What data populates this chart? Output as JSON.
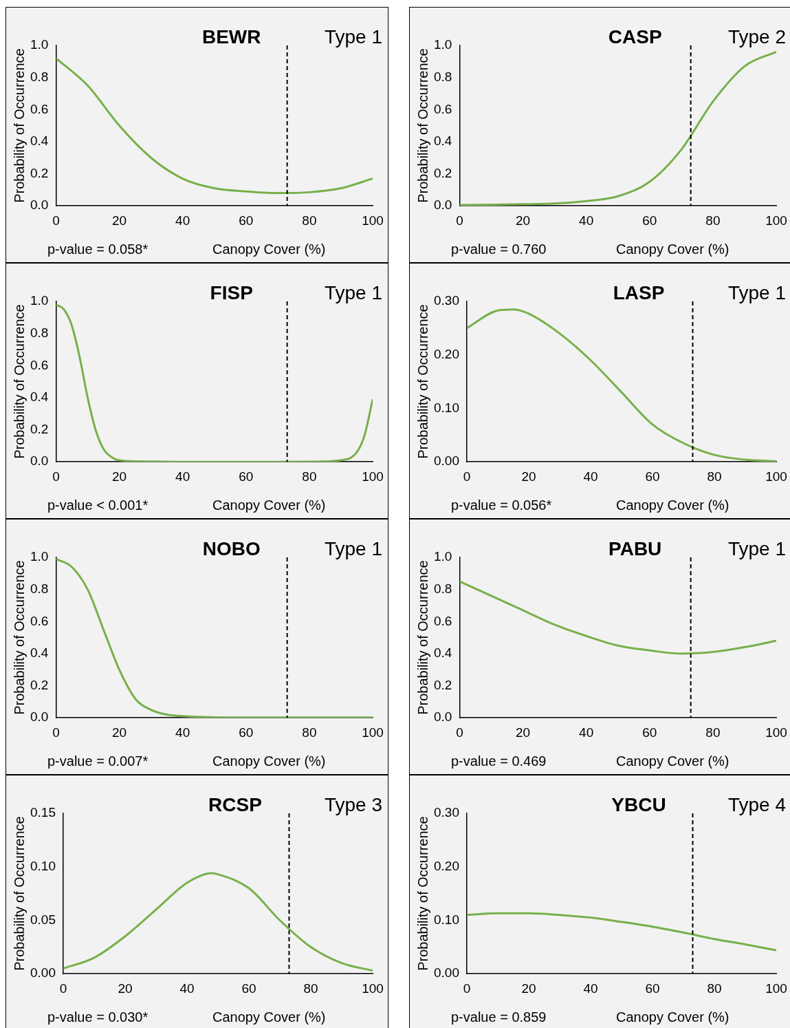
{
  "chart_data": [
    {
      "type": "line",
      "title": "BEWR",
      "annotations": [
        "Type 1",
        "p-value = 0.058*"
      ],
      "xlabel": "Canopy Cover (%)",
      "ylabel": "Probability of Occurrence",
      "x": [
        0,
        10,
        20,
        30,
        40,
        50,
        60,
        70,
        80,
        90,
        100
      ],
      "series": [
        {
          "color": "#77b04a",
          "values": [
            0.92,
            0.75,
            0.5,
            0.3,
            0.17,
            0.11,
            0.09,
            0.08,
            0.085,
            0.11,
            0.17
          ]
        }
      ],
      "xlim": [
        0,
        100
      ],
      "xticks": [
        0,
        20,
        40,
        60,
        80,
        100
      ],
      "ylim": [
        0,
        1
      ],
      "yticks": [
        {
          "value": 0,
          "label": "0.0"
        },
        {
          "value": 0.2,
          "label": "0.2"
        },
        {
          "value": 0.4,
          "label": "0.4"
        },
        {
          "value": 0.6,
          "label": "0.6"
        },
        {
          "value": 0.8,
          "label": "0.8"
        },
        {
          "value": 1,
          "label": "1.0"
        }
      ],
      "ref_lines": [
        {
          "axis": "x",
          "value": 73,
          "color": "#000000",
          "line_style": "dashed"
        }
      ],
      "legend": false,
      "grid": false,
      "marker": "none",
      "line_style": "solid"
    },
    {
      "type": "line",
      "title": "CASP",
      "annotations": [
        "Type 2",
        "p-value = 0.760"
      ],
      "xlabel": "Canopy Cover (%)",
      "ylabel": "Probability of Occurrence",
      "x": [
        0,
        10,
        20,
        30,
        40,
        50,
        60,
        70,
        80,
        90,
        100
      ],
      "series": [
        {
          "color": "#77b04a",
          "values": [
            0.005,
            0.007,
            0.01,
            0.015,
            0.03,
            0.06,
            0.15,
            0.35,
            0.65,
            0.87,
            0.96
          ]
        }
      ],
      "xlim": [
        0,
        100
      ],
      "xticks": [
        0,
        20,
        40,
        60,
        80,
        100
      ],
      "ylim": [
        0,
        1
      ],
      "yticks": [
        {
          "value": 0,
          "label": "0.0"
        },
        {
          "value": 0.2,
          "label": "0.2"
        },
        {
          "value": 0.4,
          "label": "0.4"
        },
        {
          "value": 0.6,
          "label": "0.6"
        },
        {
          "value": 0.8,
          "label": "0.8"
        },
        {
          "value": 1,
          "label": "1.0"
        }
      ],
      "ref_lines": [
        {
          "axis": "x",
          "value": 73,
          "color": "#000000",
          "line_style": "dashed"
        }
      ],
      "legend": false,
      "grid": false,
      "marker": "none",
      "line_style": "solid"
    },
    {
      "type": "line",
      "title": "FISP",
      "annotations": [
        "Type 1",
        "p-value < 0.001*"
      ],
      "xlabel": "Canopy Cover (%)",
      "ylabel": "Probability of Occurrence",
      "x": [
        0,
        2.5,
        5,
        7.5,
        10,
        12.5,
        15,
        17.5,
        20,
        30,
        40,
        50,
        60,
        70,
        80,
        90,
        95,
        97.5,
        100
      ],
      "series": [
        {
          "color": "#77b04a",
          "values": [
            0.98,
            0.95,
            0.85,
            0.65,
            0.4,
            0.2,
            0.08,
            0.03,
            0.01,
            0.002,
            0,
            0,
            0,
            0,
            0.001,
            0.01,
            0.06,
            0.17,
            0.39
          ]
        }
      ],
      "xlim": [
        0,
        100
      ],
      "xticks": [
        0,
        20,
        40,
        60,
        80,
        100
      ],
      "ylim": [
        0,
        1
      ],
      "yticks": [
        {
          "value": 0,
          "label": "0.0"
        },
        {
          "value": 0.2,
          "label": "0.2"
        },
        {
          "value": 0.4,
          "label": "0.4"
        },
        {
          "value": 0.6,
          "label": "0.6"
        },
        {
          "value": 0.8,
          "label": "0.8"
        },
        {
          "value": 1,
          "label": "1.0"
        }
      ],
      "ref_lines": [
        {
          "axis": "x",
          "value": 73,
          "color": "#000000",
          "line_style": "dashed"
        }
      ],
      "legend": false,
      "grid": false,
      "marker": "none",
      "line_style": "solid"
    },
    {
      "type": "line",
      "title": "LASP",
      "annotations": [
        "Type 1",
        "p-value = 0.056*"
      ],
      "xlabel": "Canopy Cover (%)",
      "ylabel": "Probability of Occurrence",
      "x": [
        0,
        10,
        15,
        20,
        30,
        40,
        50,
        60,
        70,
        80,
        90,
        100
      ],
      "series": [
        {
          "color": "#77b04a",
          "values": [
            0.25,
            0.283,
            0.285,
            0.277,
            0.24,
            0.19,
            0.13,
            0.07,
            0.035,
            0.013,
            0.004,
            0.001
          ]
        }
      ],
      "xlim": [
        0,
        100
      ],
      "xticks": [
        0,
        20,
        40,
        60,
        80,
        100
      ],
      "ylim": [
        0,
        0.3
      ],
      "yticks": [
        {
          "value": 0,
          "label": "0.00"
        },
        {
          "value": 0.1,
          "label": "0.10"
        },
        {
          "value": 0.2,
          "label": "0.20"
        },
        {
          "value": 0.3,
          "label": "0.30"
        }
      ],
      "ref_lines": [
        {
          "axis": "x",
          "value": 73,
          "color": "#000000",
          "line_style": "dashed"
        }
      ],
      "legend": false,
      "grid": false,
      "marker": "none",
      "line_style": "solid"
    },
    {
      "type": "line",
      "title": "NOBO",
      "annotations": [
        "Type 1",
        "p-value = 0.007*"
      ],
      "xlabel": "Canopy Cover (%)",
      "ylabel": "Probability of Occurrence",
      "x": [
        0,
        5,
        10,
        15,
        20,
        25,
        30,
        35,
        40,
        50,
        60,
        80,
        100
      ],
      "series": [
        {
          "color": "#77b04a",
          "values": [
            0.99,
            0.94,
            0.8,
            0.55,
            0.3,
            0.12,
            0.05,
            0.02,
            0.01,
            0.003,
            0.002,
            0.002,
            0.002
          ]
        }
      ],
      "xlim": [
        0,
        100
      ],
      "xticks": [
        0,
        20,
        40,
        60,
        80,
        100
      ],
      "ylim": [
        0,
        1
      ],
      "yticks": [
        {
          "value": 0,
          "label": "0.0"
        },
        {
          "value": 0.2,
          "label": "0.2"
        },
        {
          "value": 0.4,
          "label": "0.4"
        },
        {
          "value": 0.6,
          "label": "0.6"
        },
        {
          "value": 0.8,
          "label": "0.8"
        },
        {
          "value": 1,
          "label": "1.0"
        }
      ],
      "ref_lines": [
        {
          "axis": "x",
          "value": 73,
          "color": "#000000",
          "line_style": "dashed"
        }
      ],
      "legend": false,
      "grid": false,
      "marker": "none",
      "line_style": "solid"
    },
    {
      "type": "line",
      "title": "PABU",
      "annotations": [
        "Type 1",
        "p-value = 0.469"
      ],
      "xlabel": "Canopy Cover (%)",
      "ylabel": "Probability of Occurrence",
      "x": [
        0,
        10,
        20,
        30,
        40,
        50,
        60,
        70,
        80,
        90,
        100
      ],
      "series": [
        {
          "color": "#77b04a",
          "values": [
            0.85,
            0.76,
            0.67,
            0.58,
            0.51,
            0.45,
            0.42,
            0.4,
            0.41,
            0.44,
            0.48
          ]
        }
      ],
      "xlim": [
        0,
        100
      ],
      "xticks": [
        0,
        20,
        40,
        60,
        80,
        100
      ],
      "ylim": [
        0,
        1
      ],
      "yticks": [
        {
          "value": 0,
          "label": "0.0"
        },
        {
          "value": 0.2,
          "label": "0.2"
        },
        {
          "value": 0.4,
          "label": "0.4"
        },
        {
          "value": 0.6,
          "label": "0.6"
        },
        {
          "value": 0.8,
          "label": "0.8"
        },
        {
          "value": 1,
          "label": "1.0"
        }
      ],
      "ref_lines": [
        {
          "axis": "x",
          "value": 73,
          "color": "#000000",
          "line_style": "dashed"
        }
      ],
      "legend": false,
      "grid": false,
      "marker": "none",
      "line_style": "solid"
    },
    {
      "type": "line",
      "title": "RCSP",
      "annotations": [
        "Type 3",
        "p-value = 0.030*"
      ],
      "xlabel": "Canopy Cover (%)",
      "ylabel": "Probability of Occurrence",
      "x": [
        0,
        10,
        20,
        30,
        40,
        48,
        50,
        60,
        70,
        80,
        90,
        100
      ],
      "series": [
        {
          "color": "#77b04a",
          "values": [
            0.005,
            0.015,
            0.035,
            0.06,
            0.085,
            0.094,
            0.093,
            0.08,
            0.05,
            0.025,
            0.01,
            0.003
          ]
        }
      ],
      "xlim": [
        0,
        100
      ],
      "xticks": [
        0,
        20,
        40,
        60,
        80,
        100
      ],
      "ylim": [
        0,
        0.15
      ],
      "yticks": [
        {
          "value": 0,
          "label": "0.00"
        },
        {
          "value": 0.05,
          "label": "0.05"
        },
        {
          "value": 0.1,
          "label": "0.10"
        },
        {
          "value": 0.15,
          "label": "0.15"
        }
      ],
      "ref_lines": [
        {
          "axis": "x",
          "value": 73,
          "color": "#000000",
          "line_style": "dashed"
        }
      ],
      "legend": false,
      "grid": false,
      "marker": "none",
      "line_style": "solid"
    },
    {
      "type": "line",
      "title": "YBCU",
      "annotations": [
        "Type 4",
        "p-value = 0.859"
      ],
      "xlabel": "Canopy Cover (%)",
      "ylabel": "Probability of Occurrence",
      "x": [
        0,
        10,
        20,
        30,
        40,
        50,
        60,
        70,
        80,
        90,
        100
      ],
      "series": [
        {
          "color": "#77b04a",
          "values": [
            0.11,
            0.113,
            0.113,
            0.11,
            0.105,
            0.097,
            0.088,
            0.077,
            0.065,
            0.055,
            0.044
          ]
        }
      ],
      "xlim": [
        0,
        100
      ],
      "xticks": [
        0,
        20,
        40,
        60,
        80,
        100
      ],
      "ylim": [
        0,
        0.3
      ],
      "yticks": [
        {
          "value": 0,
          "label": "0.00"
        },
        {
          "value": 0.1,
          "label": "0.10"
        },
        {
          "value": 0.2,
          "label": "0.20"
        },
        {
          "value": 0.3,
          "label": "0.30"
        }
      ],
      "ref_lines": [
        {
          "axis": "x",
          "value": 73,
          "color": "#000000",
          "line_style": "dashed"
        }
      ],
      "legend": false,
      "grid": false,
      "marker": "none",
      "line_style": "solid"
    }
  ]
}
